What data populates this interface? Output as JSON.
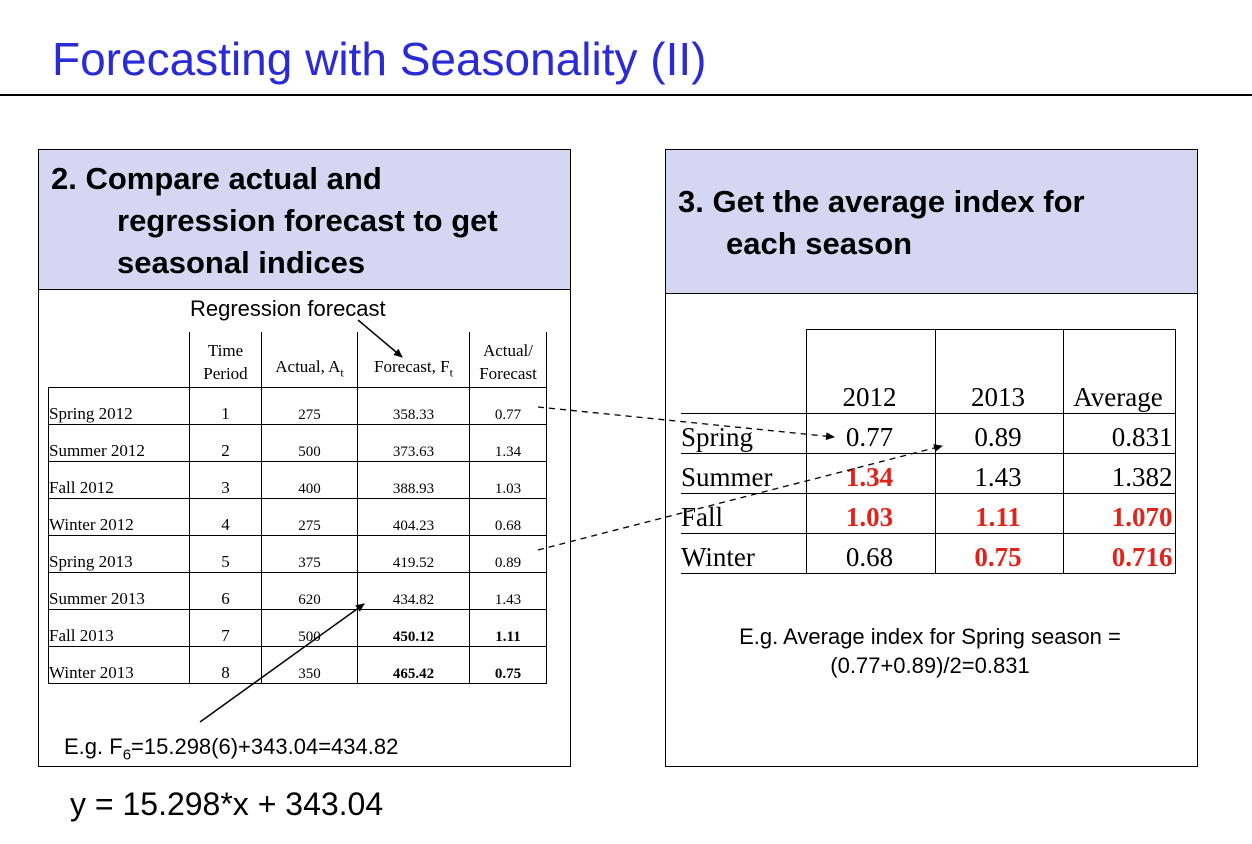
{
  "title": "Forecasting with Seasonality (II)",
  "left_panel": {
    "heading_line1": "2. Compare actual and",
    "heading_line2": "regression forecast to get",
    "heading_line3": "seasonal indices",
    "regression_label": "Regression forecast",
    "columns": {
      "period_line1": "Time",
      "period_line2": "Period",
      "actual": "Actual, A",
      "actual_sub": "t",
      "forecast": "Forecast, F",
      "forecast_sub": "t",
      "ratio_line1": "Actual/",
      "ratio_line2": "Forecast"
    },
    "rows": [
      {
        "season": "Spring 2012",
        "period": "1",
        "actual": "275",
        "forecast": "358.33",
        "ratio": "0.77"
      },
      {
        "season": "Summer 2012",
        "period": "2",
        "actual": "500",
        "forecast": "373.63",
        "ratio": "1.34"
      },
      {
        "season": "Fall 2012",
        "period": "3",
        "actual": "400",
        "forecast": "388.93",
        "ratio": "1.03"
      },
      {
        "season": "Winter 2012",
        "period": "4",
        "actual": "275",
        "forecast": "404.23",
        "ratio": "0.68"
      },
      {
        "season": "Spring 2013",
        "period": "5",
        "actual": "375",
        "forecast": "419.52",
        "ratio": "0.89"
      },
      {
        "season": "Summer 2013",
        "period": "6",
        "actual": "620",
        "forecast": "434.82",
        "ratio": "1.43"
      },
      {
        "season": "Fall 2013",
        "period": "7",
        "actual": "500",
        "forecast": "450.12",
        "ratio": "1.11"
      },
      {
        "season": "Winter 2013",
        "period": "8",
        "actual": "350",
        "forecast": "465.42",
        "ratio": "0.75"
      }
    ],
    "example_prefix": "E.g. F",
    "example_sub": "6",
    "example_rest": "=15.298(6)+343.04=434.82"
  },
  "right_panel": {
    "heading_line1": "3. Get the average index for",
    "heading_line2": "each season",
    "columns": [
      "2012",
      "2013",
      "Average"
    ],
    "rows": [
      {
        "season": "Spring",
        "y2012": "0.77",
        "y2013": "0.89",
        "avg": "0.831"
      },
      {
        "season": "Summer",
        "y2012": "1.34",
        "y2013": "1.43",
        "avg": "1.382"
      },
      {
        "season": "Fall",
        "y2012": "1.03",
        "y2013": "1.11",
        "avg": "1.070"
      },
      {
        "season": "Winter",
        "y2012": "0.68",
        "y2013": "0.75",
        "avg": "0.716"
      }
    ],
    "example_line1": "E.g. Average index for Spring season =",
    "example_line2": "(0.77+0.89)/2=0.831"
  },
  "equation": "y = 15.298*x + 343.04",
  "colors": {
    "title": "#2b2bd6",
    "panel_header": "#d6d6f2",
    "highlight": "#e0241b"
  }
}
